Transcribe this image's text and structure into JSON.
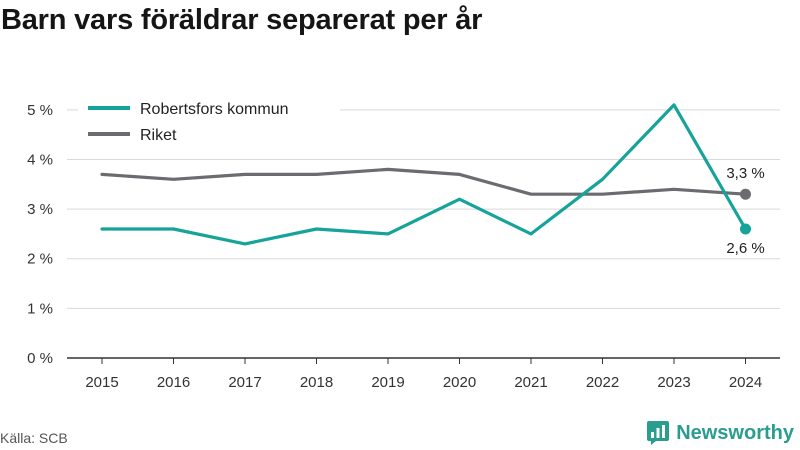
{
  "title": "Barn vars föräldrar separerat per år",
  "source": "Källa: SCB",
  "brand": "Newsworthy",
  "brand_icon": "bar-chart-logo-icon",
  "colors": {
    "primary": "#16a39a",
    "secondary": "#6b6b70",
    "grid": "#d9d9d9",
    "axis": "#333333",
    "brand": "#2a9d8f"
  },
  "chart_data": {
    "type": "line",
    "categories": [
      "2015",
      "2016",
      "2017",
      "2018",
      "2019",
      "2020",
      "2021",
      "2022",
      "2023",
      "2024"
    ],
    "series": [
      {
        "name": "Robertsfors kommun",
        "color": "#16a39a",
        "values": [
          2.6,
          2.6,
          2.3,
          2.6,
          2.5,
          3.2,
          2.5,
          3.6,
          5.1,
          2.6
        ],
        "end_label": "2,6 %"
      },
      {
        "name": "Riket",
        "color": "#6b6b70",
        "values": [
          3.7,
          3.6,
          3.7,
          3.7,
          3.8,
          3.7,
          3.3,
          3.3,
          3.4,
          3.3
        ],
        "end_label": "3,3 %"
      }
    ],
    "y_ticks": [
      0,
      1,
      2,
      3,
      4,
      5
    ],
    "y_tick_labels": [
      "0 %",
      "1 %",
      "2 %",
      "3 %",
      "4 %",
      "5 %"
    ],
    "ylim": [
      0,
      5.4
    ],
    "grid": true,
    "legend_placement": "top-left"
  }
}
